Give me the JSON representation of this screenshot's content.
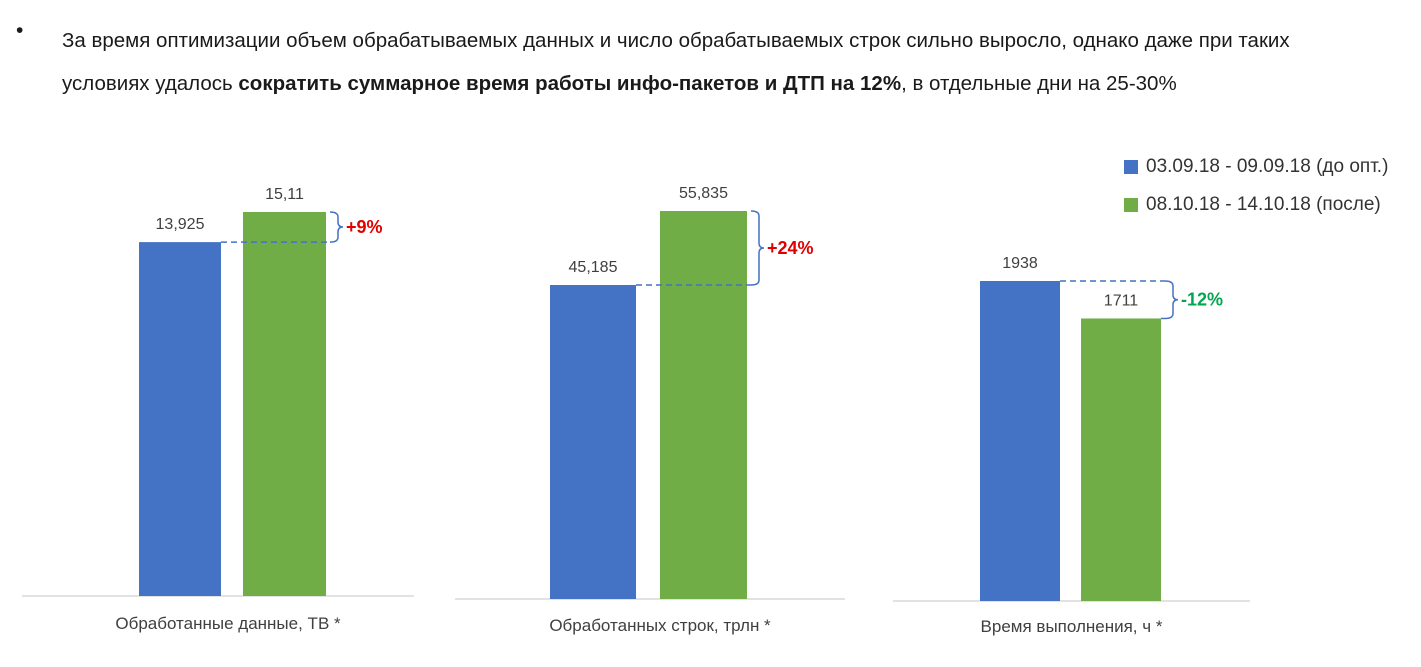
{
  "intro": {
    "bullet": "•",
    "text_part1": "За время оптимизации объем обрабатываемых данных и число обрабатываемых строк сильно выросло, однако даже при таких условиях удалось ",
    "text_bold": "сократить суммарное время работы инфо-пакетов и ДТП на 12%",
    "text_part2": ", в отдельные дни на 25-30%"
  },
  "legend": [
    {
      "label": "03.09.18 - 09.09.18 (до опт.)",
      "color": "#4472C4"
    },
    {
      "label": "08.10.18 - 14.10.18 (после)",
      "color": "#70AD47"
    }
  ],
  "chart_data": [
    {
      "type": "bar",
      "categories": [
        "Обработанные данные, ТВ *"
      ],
      "series": [
        {
          "name": "03.09.18 - 09.09.18 (до опт.)",
          "values": [
            13.925
          ],
          "value_labels": [
            "13,925"
          ]
        },
        {
          "name": "08.10.18 - 14.10.18 (после)",
          "values": [
            15.11
          ],
          "value_labels": [
            "15,11"
          ]
        }
      ],
      "change_label": "+9%",
      "change_color": "#E00000"
    },
    {
      "type": "bar",
      "categories": [
        "Обработанных строк, трлн *"
      ],
      "series": [
        {
          "name": "03.09.18 - 09.09.18 (до опт.)",
          "values": [
            45.185
          ],
          "value_labels": [
            "45,185"
          ]
        },
        {
          "name": "08.10.18 - 14.10.18 (после)",
          "values": [
            55.835
          ],
          "value_labels": [
            "55,835"
          ]
        }
      ],
      "change_label": "+24%",
      "change_color": "#E00000"
    },
    {
      "type": "bar",
      "categories": [
        "Время выполнения, ч *"
      ],
      "series": [
        {
          "name": "03.09.18 - 09.09.18 (до опт.)",
          "values": [
            1938
          ],
          "value_labels": [
            "1938"
          ]
        },
        {
          "name": "08.10.18 - 14.10.18 (после)",
          "values": [
            1711
          ],
          "value_labels": [
            "1711"
          ]
        }
      ],
      "change_label": "-12%",
      "change_color": "#00A651"
    }
  ]
}
